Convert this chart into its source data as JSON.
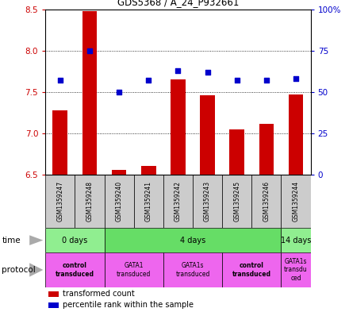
{
  "title": "GDS5368 / A_24_P932661",
  "samples": [
    "GSM1359247",
    "GSM1359248",
    "GSM1359240",
    "GSM1359241",
    "GSM1359242",
    "GSM1359243",
    "GSM1359245",
    "GSM1359246",
    "GSM1359244"
  ],
  "transformed_counts": [
    7.28,
    8.48,
    6.56,
    6.61,
    7.65,
    7.46,
    7.05,
    7.12,
    7.47
  ],
  "percentile_ranks": [
    57,
    75,
    50,
    57,
    63,
    62,
    57,
    57,
    58
  ],
  "ylim": [
    6.5,
    8.5
  ],
  "y2lim": [
    0,
    100
  ],
  "yticks": [
    6.5,
    7.0,
    7.5,
    8.0,
    8.5
  ],
  "y2ticks": [
    0,
    25,
    50,
    75,
    100
  ],
  "bar_color": "#cc0000",
  "dot_color": "#0000cc",
  "bar_width": 0.5,
  "time_groups": [
    {
      "label": "0 days",
      "start": 0,
      "end": 2,
      "color": "#90ee90"
    },
    {
      "label": "4 days",
      "start": 2,
      "end": 8,
      "color": "#66dd66"
    },
    {
      "label": "14 days",
      "start": 8,
      "end": 9,
      "color": "#90ee90"
    }
  ],
  "protocol_groups": [
    {
      "label": "control\ntransduced",
      "start": 0,
      "end": 2,
      "color": "#ee66ee",
      "bold": true
    },
    {
      "label": "GATA1\ntransduced",
      "start": 2,
      "end": 4,
      "color": "#ee66ee",
      "bold": false
    },
    {
      "label": "GATA1s\ntransduced",
      "start": 4,
      "end": 6,
      "color": "#ee66ee",
      "bold": false
    },
    {
      "label": "control\ntransduced",
      "start": 6,
      "end": 8,
      "color": "#ee66ee",
      "bold": true
    },
    {
      "label": "GATA1s\ntransdu\nced",
      "start": 8,
      "end": 9,
      "color": "#ee66ee",
      "bold": false
    }
  ],
  "sample_bg_color": "#cccccc",
  "ylabel_color": "#cc0000",
  "y2label_color": "#0000cc",
  "arrow_color": "#aaaaaa"
}
